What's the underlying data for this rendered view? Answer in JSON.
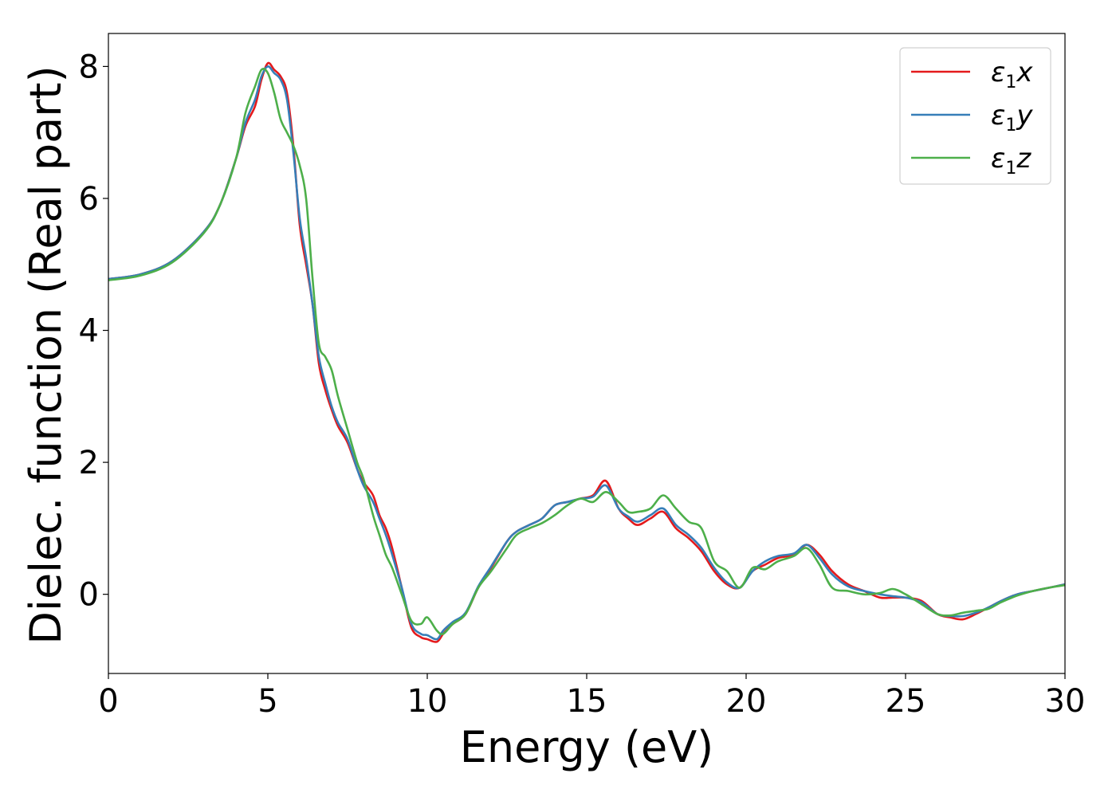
{
  "chart_data": {
    "type": "line",
    "xlabel": "Energy (eV)",
    "ylabel": "Dielec. function (Real part)",
    "xlim": [
      0,
      30
    ],
    "ylim": [
      -1.2,
      8.5
    ],
    "xticks": [
      "0",
      "5",
      "10",
      "15",
      "20",
      "25",
      "30"
    ],
    "yticks": [
      "0",
      "2",
      "4",
      "6",
      "8"
    ],
    "grid": false,
    "legend_position": "top-right",
    "series": [
      {
        "name": "ε1x",
        "legend_main": "ε",
        "legend_sub": "1",
        "legend_suffix": "x",
        "color": "#e41a1c",
        "x": [
          0,
          1,
          2,
          3,
          3.5,
          4,
          4.3,
          4.6,
          4.8,
          5.0,
          5.2,
          5.4,
          5.6,
          5.8,
          6.0,
          6.2,
          6.4,
          6.6,
          6.8,
          7.0,
          7.2,
          7.5,
          7.8,
          8.0,
          8.3,
          8.5,
          8.7,
          8.9,
          9.2,
          9.5,
          9.8,
          10.0,
          10.3,
          10.5,
          10.8,
          11.2,
          11.6,
          12.0,
          12.5,
          12.8,
          13.2,
          13.6,
          14.0,
          14.4,
          14.8,
          15.2,
          15.6,
          16.0,
          16.3,
          16.6,
          17.0,
          17.4,
          17.8,
          18.2,
          18.6,
          19.0,
          19.4,
          19.8,
          20.2,
          20.6,
          21.0,
          21.5,
          21.9,
          22.3,
          22.7,
          23.2,
          23.7,
          24.2,
          24.6,
          25.0,
          25.5,
          26.0,
          26.4,
          26.8,
          27.2,
          27.6,
          28.0,
          28.5,
          29.0,
          29.5,
          30.0
        ],
        "y": [
          4.78,
          4.85,
          5.05,
          5.5,
          5.9,
          6.6,
          7.1,
          7.4,
          7.8,
          8.05,
          7.95,
          7.85,
          7.6,
          6.8,
          5.6,
          5.0,
          4.4,
          3.5,
          3.1,
          2.8,
          2.55,
          2.3,
          1.9,
          1.7,
          1.5,
          1.2,
          1.0,
          0.7,
          0.1,
          -0.5,
          -0.65,
          -0.68,
          -0.72,
          -0.6,
          -0.45,
          -0.3,
          0.1,
          0.4,
          0.8,
          0.95,
          1.05,
          1.15,
          1.35,
          1.4,
          1.45,
          1.5,
          1.72,
          1.3,
          1.15,
          1.05,
          1.15,
          1.25,
          1.0,
          0.85,
          0.65,
          0.35,
          0.15,
          0.1,
          0.35,
          0.45,
          0.55,
          0.6,
          0.75,
          0.6,
          0.35,
          0.15,
          0.05,
          -0.05,
          -0.05,
          -0.05,
          -0.1,
          -0.3,
          -0.35,
          -0.38,
          -0.3,
          -0.2,
          -0.1,
          0.0,
          0.05,
          0.1,
          0.15
        ]
      },
      {
        "name": "ε1y",
        "legend_main": "ε",
        "legend_sub": "1",
        "legend_suffix": "y",
        "color": "#377eb8",
        "x": [
          0,
          1,
          2,
          3,
          3.5,
          4,
          4.3,
          4.6,
          4.8,
          5.0,
          5.2,
          5.4,
          5.6,
          5.8,
          6.0,
          6.2,
          6.4,
          6.6,
          6.8,
          7.0,
          7.2,
          7.5,
          7.8,
          8.0,
          8.3,
          8.5,
          8.7,
          8.9,
          9.2,
          9.5,
          9.8,
          10.0,
          10.3,
          10.5,
          10.8,
          11.2,
          11.6,
          12.0,
          12.5,
          12.8,
          13.2,
          13.6,
          14.0,
          14.4,
          14.8,
          15.2,
          15.6,
          16.0,
          16.3,
          16.6,
          17.0,
          17.4,
          17.8,
          18.2,
          18.6,
          19.0,
          19.4,
          19.8,
          20.2,
          20.6,
          21.0,
          21.5,
          21.9,
          22.3,
          22.7,
          23.2,
          23.7,
          24.2,
          24.6,
          25.0,
          25.5,
          26.0,
          26.4,
          26.8,
          27.2,
          27.6,
          28.0,
          28.5,
          29.0,
          29.5,
          30.0
        ],
        "y": [
          4.78,
          4.85,
          5.05,
          5.5,
          5.9,
          6.6,
          7.15,
          7.5,
          7.85,
          8.0,
          7.9,
          7.8,
          7.5,
          6.7,
          5.7,
          5.1,
          4.4,
          3.6,
          3.2,
          2.85,
          2.6,
          2.35,
          1.9,
          1.65,
          1.4,
          1.15,
          0.9,
          0.6,
          0.1,
          -0.45,
          -0.6,
          -0.62,
          -0.68,
          -0.55,
          -0.42,
          -0.28,
          0.12,
          0.42,
          0.8,
          0.95,
          1.05,
          1.15,
          1.35,
          1.4,
          1.45,
          1.48,
          1.65,
          1.3,
          1.18,
          1.1,
          1.2,
          1.3,
          1.05,
          0.9,
          0.7,
          0.4,
          0.18,
          0.1,
          0.35,
          0.5,
          0.58,
          0.62,
          0.75,
          0.55,
          0.3,
          0.12,
          0.05,
          0.0,
          -0.03,
          -0.05,
          -0.12,
          -0.3,
          -0.33,
          -0.33,
          -0.28,
          -0.2,
          -0.1,
          0.0,
          0.05,
          0.1,
          0.15
        ]
      },
      {
        "name": "ε1z",
        "legend_main": "ε",
        "legend_sub": "1",
        "legend_suffix": "z",
        "color": "#4daf4a",
        "x": [
          0,
          1,
          2,
          3,
          3.5,
          4,
          4.3,
          4.6,
          4.8,
          5.0,
          5.2,
          5.4,
          5.6,
          5.8,
          6.0,
          6.2,
          6.4,
          6.6,
          6.8,
          7.0,
          7.2,
          7.5,
          7.8,
          8.0,
          8.3,
          8.5,
          8.7,
          8.9,
          9.2,
          9.5,
          9.8,
          10.0,
          10.3,
          10.5,
          10.8,
          11.2,
          11.6,
          12.0,
          12.5,
          12.8,
          13.2,
          13.6,
          14.0,
          14.4,
          14.8,
          15.2,
          15.6,
          16.0,
          16.3,
          16.6,
          17.0,
          17.4,
          17.8,
          18.2,
          18.6,
          19.0,
          19.4,
          19.8,
          20.2,
          20.6,
          21.0,
          21.5,
          21.9,
          22.3,
          22.7,
          23.2,
          23.7,
          24.2,
          24.6,
          25.0,
          25.5,
          26.0,
          26.4,
          26.8,
          27.2,
          27.6,
          28.0,
          28.5,
          29.0,
          29.5,
          30.0
        ],
        "y": [
          4.76,
          4.83,
          5.03,
          5.48,
          5.9,
          6.6,
          7.3,
          7.7,
          7.95,
          7.9,
          7.6,
          7.2,
          7.0,
          6.8,
          6.5,
          6.0,
          4.8,
          3.8,
          3.6,
          3.4,
          3.0,
          2.5,
          2.0,
          1.75,
          1.2,
          0.9,
          0.6,
          0.4,
          0.0,
          -0.4,
          -0.45,
          -0.35,
          -0.55,
          -0.6,
          -0.45,
          -0.3,
          0.1,
          0.35,
          0.7,
          0.9,
          1.0,
          1.08,
          1.2,
          1.35,
          1.45,
          1.4,
          1.55,
          1.4,
          1.25,
          1.25,
          1.3,
          1.5,
          1.3,
          1.1,
          1.0,
          0.5,
          0.35,
          0.1,
          0.4,
          0.38,
          0.5,
          0.58,
          0.7,
          0.45,
          0.1,
          0.05,
          0.0,
          0.02,
          0.08,
          0.0,
          -0.15,
          -0.3,
          -0.32,
          -0.28,
          -0.25,
          -0.22,
          -0.12,
          -0.02,
          0.05,
          0.1,
          0.14
        ]
      }
    ]
  }
}
